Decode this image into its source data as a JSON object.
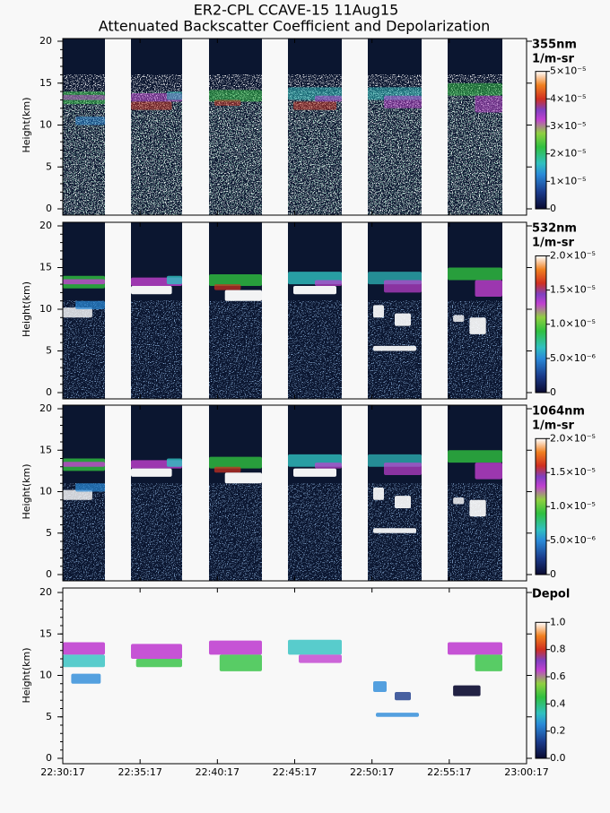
{
  "chart_data": {
    "type": "curtain",
    "title": "ER2-CPL CCAVE-15 11Aug15",
    "subtitle": "Attenuated Backscatter Coefficient and Depolarization",
    "time_labels": [
      "22:30:17",
      "22:35:17",
      "22:40:17",
      "22:45:17",
      "22:50:17",
      "22:55:17",
      "23:00:17"
    ],
    "panels": [
      {
        "ylabel": "Height(km)",
        "ylim": [
          0,
          20
        ],
        "yticks": [
          0,
          5,
          10,
          15,
          20
        ],
        "colorbar": {
          "label": [
            "355nm",
            "1/m-sr"
          ],
          "lim": [
            0,
            5e-05
          ],
          "ticks": [
            0,
            {
              "value": 1e-05,
              "label": "1×10⁻⁵"
            },
            {
              "value": 2e-05,
              "label": "2×10⁻⁵"
            },
            {
              "value": 3e-05,
              "label": "3×10⁻⁵"
            },
            {
              "value": 4e-05,
              "label": "4×10⁻⁵"
            },
            {
              "value": 5e-05,
              "label": "5×10⁻⁵"
            }
          ]
        }
      },
      {
        "ylabel": "Height(km)",
        "ylim": [
          0,
          20
        ],
        "yticks": [
          0,
          5,
          10,
          15,
          20
        ],
        "colorbar": {
          "label": [
            "532nm",
            "1/m-sr"
          ],
          "lim": [
            0,
            2e-05
          ],
          "ticks": [
            0,
            {
              "value": 5e-06,
              "label": "5.0×10⁻⁶"
            },
            {
              "value": 1e-05,
              "label": "1.0×10⁻⁵"
            },
            {
              "value": 1.5e-05,
              "label": "1.5×10⁻⁵"
            },
            {
              "value": 2e-05,
              "label": "2.0×10⁻⁵"
            }
          ]
        }
      },
      {
        "ylabel": "Height(km)",
        "ylim": [
          0,
          20
        ],
        "yticks": [
          0,
          5,
          10,
          15,
          20
        ],
        "colorbar": {
          "label": [
            "1064nm",
            "1/m-sr"
          ],
          "lim": [
            0,
            2e-05
          ],
          "ticks": [
            0,
            {
              "value": 5e-06,
              "label": "5.0×10⁻⁶"
            },
            {
              "value": 1e-05,
              "label": "1.0×10⁻⁵"
            },
            {
              "value": 1.5e-05,
              "label": "1.5×10⁻⁵"
            },
            {
              "value": 2e-05,
              "label": "2.0×10⁻⁵"
            }
          ]
        }
      },
      {
        "ylabel": "Height(km)",
        "ylim": [
          0,
          20
        ],
        "yticks": [
          0,
          5,
          10,
          15,
          20
        ],
        "colorbar": {
          "label": [
            "Depol"
          ],
          "lim": [
            0,
            1
          ],
          "ticks": [
            {
              "value": 0,
              "label": "0.0"
            },
            0.2,
            0.4,
            0.6,
            0.8,
            {
              "value": 1,
              "label": "1.0"
            }
          ]
        }
      }
    ]
  }
}
